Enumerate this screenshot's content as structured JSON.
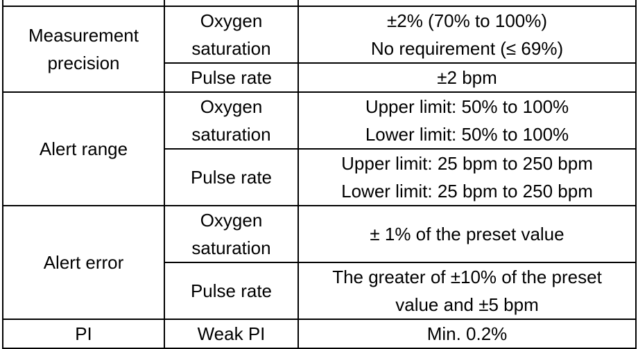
{
  "spec_table": {
    "rows": [
      {
        "parameter": [
          "Measurement",
          "precision"
        ],
        "items": [
          {
            "name": [
              "Oxygen",
              "saturation"
            ],
            "value": [
              "±2% (70% to 100%)",
              "No requirement (≤ 69%)"
            ]
          },
          {
            "name": [
              "Pulse rate"
            ],
            "value": [
              "±2 bpm"
            ]
          }
        ]
      },
      {
        "parameter": [
          "Alert range"
        ],
        "items": [
          {
            "name": [
              "Oxygen",
              "saturation"
            ],
            "value": [
              "Upper limit: 50% to 100%",
              "Lower limit: 50% to 100%"
            ]
          },
          {
            "name": [
              "Pulse rate"
            ],
            "value": [
              "Upper limit: 25 bpm to 250 bpm",
              "Lower limit: 25 bpm to 250 bpm"
            ]
          }
        ]
      },
      {
        "parameter": [
          "Alert error"
        ],
        "items": [
          {
            "name": [
              "Oxygen",
              "saturation"
            ],
            "value": [
              "± 1% of the preset value"
            ]
          },
          {
            "name": [
              "Pulse rate"
            ],
            "value": [
              "The greater of ±10% of the preset",
              "value and ±5 bpm"
            ]
          }
        ]
      },
      {
        "parameter": [
          "PI"
        ],
        "items": [
          {
            "name": [
              "Weak PI"
            ],
            "value": [
              "Min. 0.2%"
            ]
          }
        ]
      }
    ]
  }
}
